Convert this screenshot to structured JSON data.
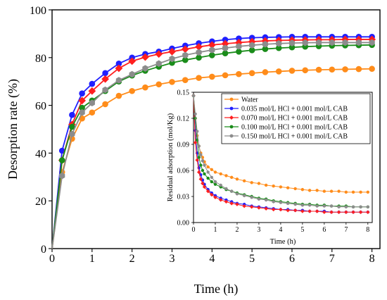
{
  "chart_data": [
    {
      "type": "line",
      "xlabel": "Time (h)",
      "ylabel": "Desorption rate (%)",
      "xlim": [
        0,
        8.2
      ],
      "ylim": [
        0,
        100
      ],
      "xticks": [
        0,
        1,
        2,
        3,
        4,
        5,
        6,
        7,
        8
      ],
      "yticks": [
        0,
        20,
        40,
        60,
        80,
        100
      ],
      "x": [
        0,
        0.25,
        0.5,
        0.75,
        1,
        1.33,
        1.67,
        2,
        2.33,
        2.67,
        3,
        3.33,
        3.67,
        4,
        4.33,
        4.67,
        5,
        5.33,
        5.67,
        6,
        6.33,
        6.67,
        7,
        7.33,
        7.67,
        8
      ],
      "series": [
        {
          "name": "Water",
          "color": "#ff8c1a",
          "marker": "circle",
          "values": [
            0,
            32,
            46,
            54.5,
            57,
            60.5,
            64,
            66,
            67.5,
            68.8,
            69.8,
            70.6,
            71.5,
            72,
            72.6,
            73.1,
            73.5,
            73.9,
            74.2,
            74.5,
            74.7,
            74.9,
            75,
            75.1,
            75.2,
            75.3
          ]
        },
        {
          "name": "0.035 mol/L HCl + 0.001 mol/L CAB",
          "color": "#1f1fff",
          "marker": "circle",
          "values": [
            0,
            41,
            56,
            65,
            69,
            73.5,
            77.5,
            80,
            81.5,
            82.5,
            83.8,
            85,
            86,
            86.8,
            87.5,
            88,
            88.3,
            88.5,
            88.6,
            88.7,
            88.7,
            88.7,
            88.7,
            88.7,
            88.7,
            88.7
          ]
        },
        {
          "name": "0.070 mol/L HCl + 0.001 mol/L CAB",
          "color": "#ff1f1f",
          "marker": "diamond",
          "values": [
            0,
            37,
            52,
            62,
            66,
            71,
            75.5,
            78.5,
            80.2,
            81.5,
            82.5,
            83.5,
            84.5,
            85.3,
            85.8,
            86.3,
            86.7,
            87,
            87.2,
            87.3,
            87.4,
            87.5,
            87.5,
            87.6,
            87.6,
            87.6
          ]
        },
        {
          "name": "0.100 mol/L HCl + 0.001 mol/L CAB",
          "color": "#1a8c1a",
          "marker": "circle",
          "values": [
            0,
            37,
            51,
            59,
            62,
            66,
            70,
            72.5,
            74.5,
            76.2,
            77.8,
            79,
            80,
            81,
            81.8,
            82.5,
            83.1,
            83.6,
            84,
            84.3,
            84.6,
            84.8,
            85,
            85.1,
            85.2,
            85.3
          ]
        },
        {
          "name": "0.150 mol/L HCl + 0.001 mol/L CAB",
          "color": "#8c8c8c",
          "marker": "hexagon",
          "values": [
            0,
            30.5,
            48,
            57,
            61,
            66.5,
            70.5,
            73,
            75.5,
            77.5,
            79.5,
            81,
            82.2,
            83.2,
            84,
            84.7,
            85.2,
            85.6,
            85.9,
            86.1,
            86.2,
            86.3,
            86.3,
            86.3,
            86.3,
            86.3
          ]
        }
      ]
    },
    {
      "type": "line",
      "xlabel": "Time (h)",
      "ylabel": "Residual adsorption (mol/Kg)",
      "xlim": [
        0,
        8.2
      ],
      "ylim": [
        0,
        0.15
      ],
      "xticks": [
        0,
        1,
        2,
        3,
        4,
        5,
        6,
        7,
        8
      ],
      "yticks": [
        0.0,
        0.03,
        0.06,
        0.09,
        0.12,
        0.15
      ],
      "ytick_labels": [
        "0.00",
        "0.03",
        "0.06",
        "0.09",
        "0.12",
        "0.15"
      ],
      "legend": "top-right",
      "x": [
        0,
        0.083,
        0.167,
        0.25,
        0.333,
        0.417,
        0.5,
        0.667,
        0.833,
        1,
        1.25,
        1.5,
        1.75,
        2,
        2.33,
        2.67,
        3,
        3.33,
        3.67,
        4,
        4.33,
        4.67,
        5,
        5.33,
        5.67,
        6,
        6.33,
        6.67,
        7,
        7.33,
        7.67,
        8
      ],
      "series": [
        {
          "name": "Water",
          "color": "#ff8c1a",
          "marker": "circle",
          "values": [
            0.146,
            0.12,
            0.1,
            0.088,
            0.08,
            0.075,
            0.07,
            0.064,
            0.061,
            0.058,
            0.056,
            0.054,
            0.052,
            0.05,
            0.048,
            0.046,
            0.045,
            0.043,
            0.042,
            0.041,
            0.04,
            0.039,
            0.038,
            0.037,
            0.037,
            0.036,
            0.036,
            0.036,
            0.035,
            0.035,
            0.035,
            0.035
          ]
        },
        {
          "name": "0.035 mol/L HCl + 0.001 mol/L CAB",
          "color": "#1f1fff",
          "marker": "circle",
          "values": [
            0.146,
            0.106,
            0.08,
            0.063,
            0.055,
            0.049,
            0.044,
            0.038,
            0.034,
            0.031,
            0.028,
            0.026,
            0.024,
            0.022,
            0.021,
            0.019,
            0.018,
            0.017,
            0.016,
            0.015,
            0.015,
            0.014,
            0.014,
            0.013,
            0.013,
            0.013,
            0.012,
            0.012,
            0.012,
            0.012,
            0.012,
            0.012
          ]
        },
        {
          "name": "0.070 mol/L HCl + 0.001 mol/L CAB",
          "color": "#ff1f1f",
          "marker": "diamond",
          "values": [
            0.146,
            0.092,
            0.072,
            0.058,
            0.05,
            0.045,
            0.041,
            0.036,
            0.032,
            0.029,
            0.026,
            0.024,
            0.022,
            0.021,
            0.019,
            0.018,
            0.017,
            0.016,
            0.015,
            0.015,
            0.014,
            0.014,
            0.013,
            0.013,
            0.013,
            0.012,
            0.012,
            0.012,
            0.012,
            0.012,
            0.012,
            0.012
          ]
        },
        {
          "name": "0.100 mol/L HCl + 0.001 mol/L CAB",
          "color": "#1a8c1a",
          "marker": "circle",
          "values": [
            0.146,
            0.12,
            0.095,
            0.075,
            0.066,
            0.06,
            0.056,
            0.051,
            0.047,
            0.044,
            0.041,
            0.038,
            0.036,
            0.034,
            0.032,
            0.03,
            0.028,
            0.027,
            0.025,
            0.024,
            0.023,
            0.022,
            0.021,
            0.021,
            0.02,
            0.02,
            0.019,
            0.019,
            0.019,
            0.018,
            0.018,
            0.018
          ]
        },
        {
          "name": "0.150 mol/L HCl + 0.001 mol/L CAB",
          "color": "#8c8c8c",
          "marker": "hexagon",
          "values": [
            0.146,
            0.125,
            0.105,
            0.088,
            0.078,
            0.071,
            0.066,
            0.058,
            0.052,
            0.047,
            0.043,
            0.039,
            0.036,
            0.033,
            0.031,
            0.029,
            0.027,
            0.026,
            0.024,
            0.023,
            0.022,
            0.021,
            0.02,
            0.02,
            0.019,
            0.019,
            0.019,
            0.018,
            0.018,
            0.018,
            0.018,
            0.018
          ]
        }
      ]
    }
  ]
}
